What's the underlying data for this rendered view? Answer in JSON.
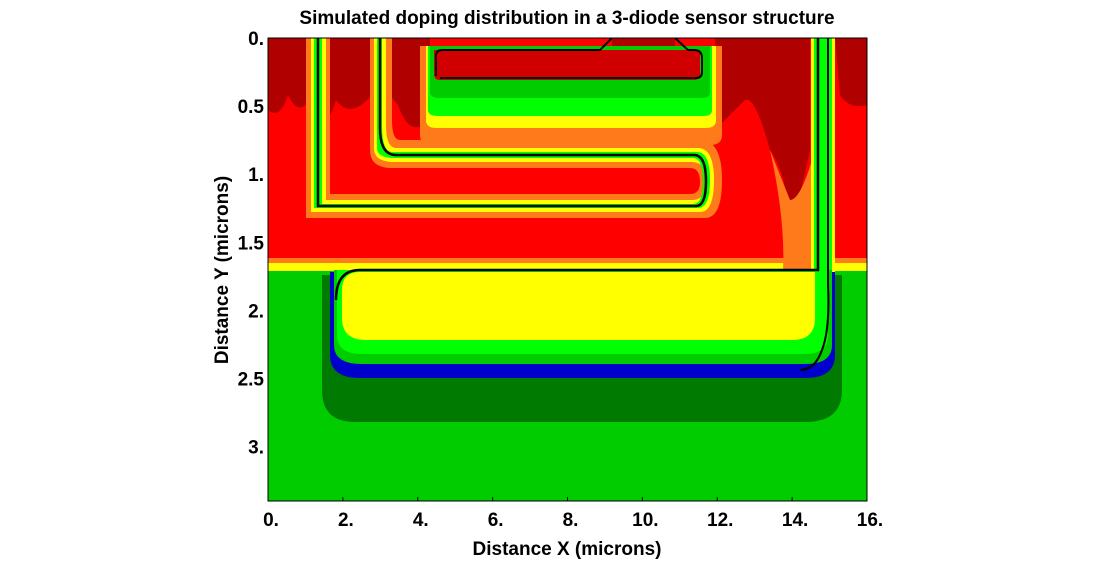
{
  "chart_data": {
    "type": "heatmap",
    "title": "Simulated doping distribution in a 3-diode sensor structure",
    "xlabel": "Distance X (microns)",
    "ylabel": "Distance Y (microns)",
    "xlim": [
      0,
      16
    ],
    "ylim": [
      0,
      3.4
    ],
    "y_inverted": true,
    "xticks": [
      "0.",
      "2.",
      "4.",
      "6.",
      "8.",
      "10.",
      "12.",
      "14.",
      "16."
    ],
    "yticks": [
      "0.",
      "0.5",
      "1.",
      "1.5",
      "2.",
      "2.5",
      "3."
    ],
    "grid": false,
    "colors": {
      "dark_red": "#b00000",
      "red": "#ff0000",
      "orange": "#ff7a1a",
      "yellow": "#ffff00",
      "light_green": "#00ff00",
      "green": "#00cc00",
      "dark_green": "#007a00",
      "blue": "#0000cc",
      "junction_line": "#000000"
    }
  }
}
